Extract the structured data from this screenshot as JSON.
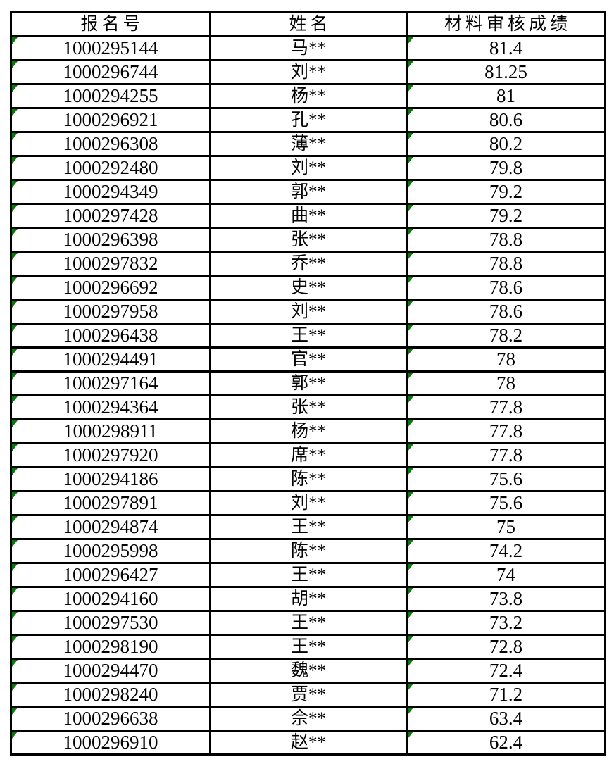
{
  "indicator_color": "#008000",
  "border_color": "#000000",
  "table": {
    "columns": [
      {
        "key": "reg_no",
        "label": "报名号"
      },
      {
        "key": "name",
        "label": "姓名"
      },
      {
        "key": "score",
        "label": "材料审核成绩"
      }
    ],
    "rows": [
      {
        "reg_no": "1000295144",
        "name": "马**",
        "score": "81.4"
      },
      {
        "reg_no": "1000296744",
        "name": "刘**",
        "score": "81.25"
      },
      {
        "reg_no": "1000294255",
        "name": "杨**",
        "score": "81"
      },
      {
        "reg_no": "1000296921",
        "name": "孔**",
        "score": "80.6"
      },
      {
        "reg_no": "1000296308",
        "name": "薄**",
        "score": "80.2"
      },
      {
        "reg_no": "1000292480",
        "name": "刘**",
        "score": "79.8"
      },
      {
        "reg_no": "1000294349",
        "name": "郭**",
        "score": "79.2"
      },
      {
        "reg_no": "1000297428",
        "name": "曲**",
        "score": "79.2"
      },
      {
        "reg_no": "1000296398",
        "name": "张**",
        "score": "78.8"
      },
      {
        "reg_no": "1000297832",
        "name": "乔**",
        "score": "78.8"
      },
      {
        "reg_no": "1000296692",
        "name": "史**",
        "score": "78.6"
      },
      {
        "reg_no": "1000297958",
        "name": "刘**",
        "score": "78.6"
      },
      {
        "reg_no": "1000296438",
        "name": "王**",
        "score": "78.2"
      },
      {
        "reg_no": "1000294491",
        "name": "官**",
        "score": "78"
      },
      {
        "reg_no": "1000297164",
        "name": "郭**",
        "score": "78"
      },
      {
        "reg_no": "1000294364",
        "name": "张**",
        "score": "77.8"
      },
      {
        "reg_no": "1000298911",
        "name": "杨**",
        "score": "77.8"
      },
      {
        "reg_no": "1000297920",
        "name": "席**",
        "score": "77.8"
      },
      {
        "reg_no": "1000294186",
        "name": "陈**",
        "score": "75.6"
      },
      {
        "reg_no": "1000297891",
        "name": "刘**",
        "score": "75.6"
      },
      {
        "reg_no": "1000294874",
        "name": "王**",
        "score": "75"
      },
      {
        "reg_no": "1000295998",
        "name": "陈**",
        "score": "74.2"
      },
      {
        "reg_no": "1000296427",
        "name": "王**",
        "score": "74"
      },
      {
        "reg_no": "1000294160",
        "name": "胡**",
        "score": "73.8"
      },
      {
        "reg_no": "1000297530",
        "name": "王**",
        "score": "73.2"
      },
      {
        "reg_no": "1000298190",
        "name": "王**",
        "score": "72.8"
      },
      {
        "reg_no": "1000294470",
        "name": "魏**",
        "score": "72.4"
      },
      {
        "reg_no": "1000298240",
        "name": "贾**",
        "score": "71.2"
      },
      {
        "reg_no": "1000296638",
        "name": "佘**",
        "score": "63.4"
      },
      {
        "reg_no": "1000296910",
        "name": "赵**",
        "score": "62.4"
      }
    ]
  }
}
